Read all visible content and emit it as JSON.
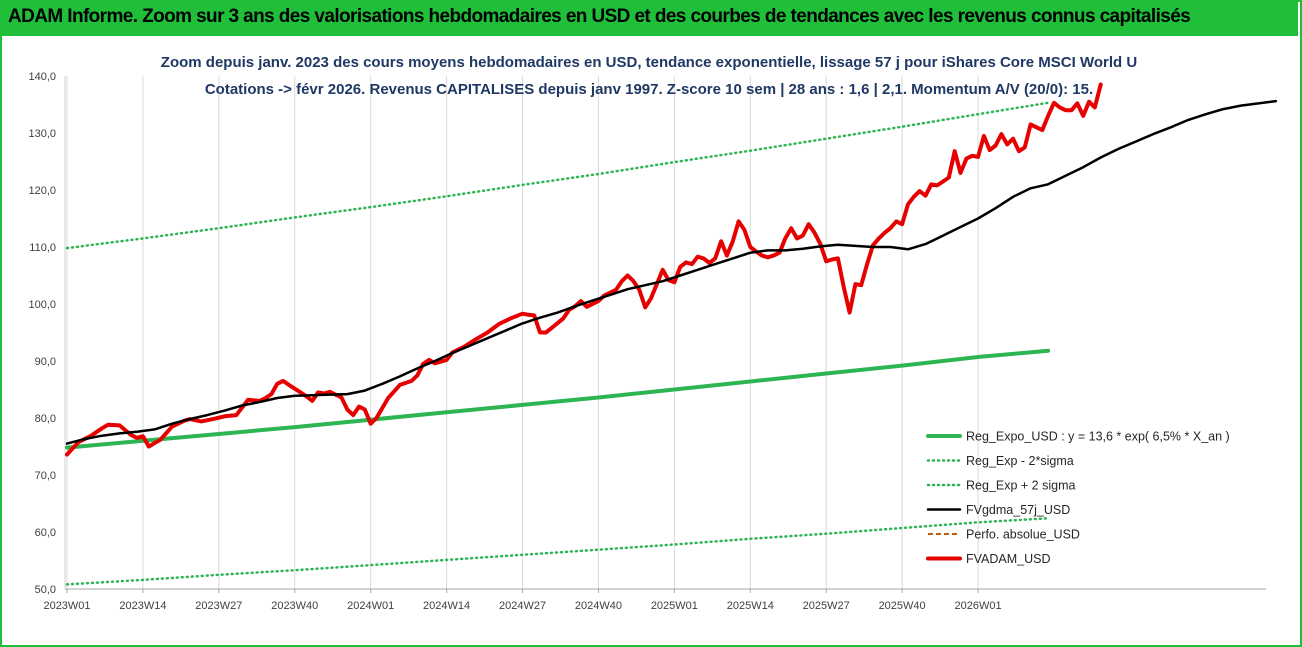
{
  "banner": {
    "text": "ADAM Informe. Zoom sur 3 ans des valorisations hebdomadaires en USD et des courbes de tendances avec les revenus connus capitalisés"
  },
  "colors": {
    "frame": "#1fbf3a",
    "trend": "#2db553",
    "band": "#2db553",
    "fvgdma": "#000000",
    "perfo": "#c55a11",
    "fvadam": "#e60000",
    "grid": "#d9d9d9",
    "title": "#1f3864"
  },
  "chart_data": {
    "type": "line",
    "title_lines": [
      "Zoom depuis janv. 2023 des cours moyens hebdomadaires en USD, tendance exponentielle, lissage 57 j pour iShares Core MSCI World U",
      "Cotations -> févr 2026. Revenus CAPITALISES depuis janv 1997. Z-score 10 sem | 28 ans : 1,6 | 2,1. Momentum A/V (20/0): 15."
    ],
    "xlabel": "",
    "ylabel": "",
    "ylim": [
      50,
      140
    ],
    "yticks": [
      "50,0",
      "60,0",
      "70,0",
      "80,0",
      "90,0",
      "100,0",
      "110,0",
      "120,0",
      "130,0",
      "140,0"
    ],
    "xtick_labels": [
      "2023W01",
      "2023W14",
      "2023W27",
      "2023W40",
      "2024W01",
      "2024W14",
      "2024W27",
      "2024W40",
      "2025W01",
      "2025W14",
      "2025W27",
      "2025W40",
      "2026W01"
    ],
    "weeks_per_tick": 13,
    "grid": "vertical",
    "legend_position": "bottom-right",
    "series": [
      {
        "name": "Reg_Expo_USD : y = 13,6 * exp( 6,5% *  X_an )",
        "style": "solid-thick",
        "color": "#2db553",
        "points": [
          [
            0,
            74.8
          ],
          [
            13,
            76.0
          ],
          [
            26,
            77.2
          ],
          [
            39,
            78.4
          ],
          [
            52,
            79.7
          ],
          [
            65,
            81.0
          ],
          [
            78,
            82.3
          ],
          [
            91,
            83.6
          ],
          [
            104,
            85.0
          ],
          [
            117,
            86.4
          ],
          [
            130,
            87.8
          ],
          [
            143,
            89.2
          ],
          [
            156,
            90.7
          ],
          [
            168,
            91.8
          ]
        ]
      },
      {
        "name": "Reg_Exp - 2*sigma",
        "style": "dotted",
        "color": "#2db553",
        "points": [
          [
            0,
            50.8
          ],
          [
            13,
            51.6
          ],
          [
            26,
            52.5
          ],
          [
            39,
            53.3
          ],
          [
            52,
            54.2
          ],
          [
            65,
            55.1
          ],
          [
            78,
            56.0
          ],
          [
            91,
            56.9
          ],
          [
            104,
            57.8
          ],
          [
            117,
            58.8
          ],
          [
            130,
            59.7
          ],
          [
            143,
            60.7
          ],
          [
            156,
            61.7
          ],
          [
            168,
            62.4
          ]
        ]
      },
      {
        "name": "Reg_Exp + 2 sigma",
        "style": "dotted",
        "color": "#2db553",
        "points": [
          [
            0,
            109.8
          ],
          [
            13,
            111.5
          ],
          [
            26,
            113.3
          ],
          [
            39,
            115.2
          ],
          [
            52,
            117.0
          ],
          [
            65,
            118.9
          ],
          [
            78,
            120.9
          ],
          [
            91,
            122.8
          ],
          [
            104,
            124.9
          ],
          [
            117,
            126.9
          ],
          [
            130,
            129.0
          ],
          [
            143,
            131.1
          ],
          [
            156,
            133.3
          ],
          [
            168,
            135.3
          ]
        ]
      },
      {
        "name": "FVgdma_57j_USD",
        "style": "solid",
        "color": "#000000",
        "points": [
          [
            0,
            75.5
          ],
          [
            3,
            76.3
          ],
          [
            6,
            76.9
          ],
          [
            9,
            77.3
          ],
          [
            12,
            77.6
          ],
          [
            15,
            78.0
          ],
          [
            18,
            79.0
          ],
          [
            21,
            79.8
          ],
          [
            24,
            80.5
          ],
          [
            27,
            81.3
          ],
          [
            30,
            82.2
          ],
          [
            33,
            82.8
          ],
          [
            36,
            83.5
          ],
          [
            39,
            83.9
          ],
          [
            42,
            84.0
          ],
          [
            45,
            84.1
          ],
          [
            48,
            84.2
          ],
          [
            51,
            84.8
          ],
          [
            54,
            86.0
          ],
          [
            57,
            87.3
          ],
          [
            60,
            88.7
          ],
          [
            63,
            90.0
          ],
          [
            66,
            91.4
          ],
          [
            69,
            92.7
          ],
          [
            72,
            94.0
          ],
          [
            75,
            95.3
          ],
          [
            78,
            96.6
          ],
          [
            81,
            97.6
          ],
          [
            84,
            98.5
          ],
          [
            87,
            99.6
          ],
          [
            90,
            100.6
          ],
          [
            93,
            101.6
          ],
          [
            96,
            102.6
          ],
          [
            99,
            103.3
          ],
          [
            102,
            104.0
          ],
          [
            105,
            105.0
          ],
          [
            108,
            106.0
          ],
          [
            111,
            107.0
          ],
          [
            114,
            108.0
          ],
          [
            117,
            109.0
          ],
          [
            120,
            109.4
          ],
          [
            123,
            109.4
          ],
          [
            126,
            109.7
          ],
          [
            129,
            110.1
          ],
          [
            132,
            110.4
          ],
          [
            135,
            110.2
          ],
          [
            138,
            110.0
          ],
          [
            141,
            110.0
          ],
          [
            144,
            109.6
          ],
          [
            147,
            110.5
          ],
          [
            150,
            112.0
          ],
          [
            153,
            113.5
          ],
          [
            156,
            115.0
          ],
          [
            159,
            116.8
          ],
          [
            162,
            118.8
          ],
          [
            165,
            120.3
          ],
          [
            168,
            121.0
          ],
          [
            171,
            122.5
          ],
          [
            174,
            124.0
          ],
          [
            177,
            125.7
          ],
          [
            180,
            127.2
          ],
          [
            183,
            128.5
          ],
          [
            186,
            129.8
          ],
          [
            189,
            131.0
          ],
          [
            192,
            132.3
          ],
          [
            195,
            133.3
          ],
          [
            198,
            134.2
          ],
          [
            201,
            134.8
          ],
          [
            204,
            135.2
          ],
          [
            207,
            135.6
          ]
        ]
      },
      {
        "name": "Perfo. absolue_USD",
        "style": "dashed",
        "color": "#c55a11",
        "points": []
      },
      {
        "name": "FVADAM_USD",
        "style": "solid-thick",
        "color": "#e60000",
        "points": [
          [
            0,
            73.6
          ],
          [
            2,
            75.8
          ],
          [
            4,
            76.8
          ],
          [
            6,
            78.2
          ],
          [
            7,
            78.8
          ],
          [
            9,
            78.7
          ],
          [
            11,
            77.0
          ],
          [
            12,
            76.5
          ],
          [
            13,
            76.8
          ],
          [
            14,
            75.0
          ],
          [
            16,
            76.2
          ],
          [
            18,
            78.5
          ],
          [
            20,
            79.5
          ],
          [
            21,
            79.8
          ],
          [
            23,
            79.4
          ],
          [
            25,
            79.8
          ],
          [
            27,
            80.3
          ],
          [
            29,
            80.5
          ],
          [
            31,
            83.2
          ],
          [
            33,
            83.0
          ],
          [
            34,
            83.5
          ],
          [
            35,
            84.2
          ],
          [
            36,
            86.0
          ],
          [
            37,
            86.5
          ],
          [
            38,
            85.8
          ],
          [
            40,
            84.5
          ],
          [
            41,
            83.8
          ],
          [
            42,
            83.0
          ],
          [
            43,
            84.5
          ],
          [
            44,
            84.3
          ],
          [
            45,
            84.6
          ],
          [
            47,
            83.6
          ],
          [
            48,
            81.5
          ],
          [
            49,
            80.5
          ],
          [
            50,
            82.0
          ],
          [
            51,
            81.5
          ],
          [
            52,
            79.0
          ],
          [
            53,
            80.0
          ],
          [
            55,
            83.5
          ],
          [
            57,
            85.8
          ],
          [
            59,
            86.5
          ],
          [
            60,
            87.5
          ],
          [
            61,
            89.5
          ],
          [
            62,
            90.2
          ],
          [
            63,
            89.6
          ],
          [
            65,
            90.2
          ],
          [
            66,
            91.5
          ],
          [
            68,
            92.5
          ],
          [
            70,
            93.8
          ],
          [
            72,
            95.0
          ],
          [
            74,
            96.5
          ],
          [
            76,
            97.5
          ],
          [
            78,
            98.3
          ],
          [
            79,
            98.1
          ],
          [
            80,
            98.0
          ],
          [
            81,
            95.0
          ],
          [
            82,
            95.0
          ],
          [
            83,
            95.8
          ],
          [
            85,
            97.5
          ],
          [
            86,
            99.0
          ],
          [
            87,
            99.6
          ],
          [
            88,
            100.5
          ],
          [
            89,
            99.5
          ],
          [
            91,
            100.5
          ],
          [
            92,
            101.5
          ],
          [
            94,
            102.5
          ],
          [
            95,
            104.0
          ],
          [
            96,
            105.0
          ],
          [
            97,
            104.0
          ],
          [
            98,
            102.5
          ],
          [
            99,
            99.4
          ],
          [
            100,
            101.0
          ],
          [
            101,
            103.5
          ],
          [
            102,
            106.0
          ],
          [
            103,
            104.2
          ],
          [
            104,
            103.8
          ],
          [
            105,
            106.5
          ],
          [
            106,
            107.3
          ],
          [
            107,
            107.0
          ],
          [
            108,
            108.3
          ],
          [
            109,
            108.0
          ],
          [
            110,
            107.2
          ],
          [
            111,
            108.0
          ],
          [
            112,
            111.0
          ],
          [
            113,
            108.5
          ],
          [
            114,
            111.0
          ],
          [
            115,
            114.5
          ],
          [
            116,
            113.0
          ],
          [
            117,
            110.0
          ],
          [
            118,
            109.2
          ],
          [
            119,
            108.5
          ],
          [
            120,
            108.2
          ],
          [
            121,
            108.5
          ],
          [
            122,
            109.0
          ],
          [
            123,
            111.5
          ],
          [
            124,
            113.3
          ],
          [
            125,
            111.5
          ],
          [
            126,
            112.0
          ],
          [
            127,
            114.0
          ],
          [
            128,
            112.5
          ],
          [
            129,
            110.5
          ],
          [
            130,
            107.5
          ],
          [
            131,
            107.8
          ],
          [
            132,
            108.0
          ],
          [
            133,
            103.0
          ],
          [
            134,
            98.5
          ],
          [
            135,
            103.5
          ],
          [
            136,
            103.3
          ],
          [
            137,
            107.0
          ],
          [
            138,
            110.3
          ],
          [
            139,
            111.5
          ],
          [
            140,
            112.5
          ],
          [
            141,
            113.3
          ],
          [
            142,
            114.5
          ],
          [
            143,
            114.0
          ],
          [
            144,
            117.5
          ],
          [
            145,
            118.8
          ],
          [
            146,
            119.8
          ],
          [
            147,
            119.0
          ],
          [
            148,
            121.0
          ],
          [
            149,
            120.8
          ],
          [
            150,
            121.5
          ],
          [
            151,
            122.2
          ],
          [
            152,
            126.8
          ],
          [
            153,
            123.0
          ],
          [
            154,
            125.5
          ],
          [
            155,
            126.0
          ],
          [
            156,
            125.8
          ],
          [
            157,
            129.5
          ],
          [
            158,
            127.0
          ],
          [
            159,
            127.8
          ],
          [
            160,
            129.8
          ],
          [
            161,
            128.0
          ],
          [
            162,
            129.0
          ],
          [
            163,
            126.8
          ],
          [
            164,
            127.5
          ],
          [
            165,
            131.5
          ],
          [
            166,
            131.0
          ],
          [
            167,
            130.5
          ],
          [
            168,
            133.0
          ],
          [
            169,
            135.3
          ],
          [
            170,
            134.5
          ],
          [
            171,
            134.0
          ],
          [
            172,
            134.0
          ],
          [
            173,
            135.2
          ],
          [
            174,
            133.0
          ],
          [
            175,
            135.5
          ],
          [
            176,
            134.5
          ],
          [
            177,
            138.5
          ]
        ]
      }
    ]
  }
}
